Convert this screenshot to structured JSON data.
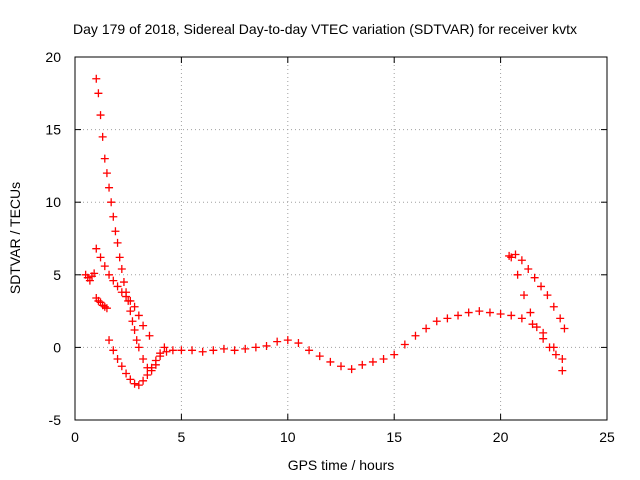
{
  "chart_data": {
    "type": "scatter",
    "title": "Day 179 of 2018, Sidereal Day-to-day VTEC variation (SDTVAR) for receiver kvtx",
    "xlabel": "GPS time / hours",
    "ylabel": "SDTVAR / TECUs",
    "xlim": [
      0,
      25
    ],
    "ylim": [
      -5,
      20
    ],
    "xticks": [
      0,
      5,
      10,
      15,
      20,
      25
    ],
    "yticks": [
      -5,
      0,
      5,
      10,
      15,
      20
    ],
    "grid": true,
    "marker": "+",
    "color": "#ff0000",
    "series": [
      {
        "name": "main-trace",
        "x": [
          1.0,
          1.1,
          1.2,
          1.3,
          1.4,
          1.5,
          1.6,
          1.7,
          1.8,
          1.9,
          2.0,
          2.1,
          2.2,
          2.3,
          2.4,
          2.5,
          2.6,
          2.7,
          2.8,
          2.9,
          3.0,
          3.2,
          3.4,
          3.6,
          3.8,
          4.0,
          4.3,
          4.6,
          5.0,
          5.5,
          6.0,
          6.5,
          7.0,
          7.5,
          8.0,
          8.5,
          9.0,
          9.5,
          10.0,
          10.5,
          11.0,
          11.5,
          12.0,
          12.5,
          13.0,
          13.5,
          14.0,
          14.5,
          15.0,
          15.5,
          16.0,
          16.5,
          17.0,
          17.5,
          18.0,
          18.5,
          19.0,
          19.5,
          20.0,
          20.5,
          21.0,
          21.5,
          22.0,
          22.5,
          22.9
        ],
        "y": [
          18.5,
          17.5,
          16.0,
          14.5,
          13.0,
          12.0,
          11.0,
          10.0,
          9.0,
          8.0,
          7.2,
          6.2,
          5.4,
          4.5,
          3.8,
          3.2,
          2.5,
          1.8,
          1.2,
          0.5,
          0.0,
          -0.8,
          -1.4,
          -1.6,
          -1.2,
          -0.6,
          -0.3,
          -0.2,
          -0.2,
          -0.2,
          -0.3,
          -0.2,
          -0.1,
          -0.2,
          -0.1,
          0.0,
          0.1,
          0.4,
          0.5,
          0.3,
          -0.2,
          -0.6,
          -1.0,
          -1.3,
          -1.5,
          -1.2,
          -1.0,
          -0.8,
          -0.5,
          0.2,
          0.8,
          1.3,
          1.8,
          2.0,
          2.2,
          2.4,
          2.5,
          2.4,
          2.3,
          2.2,
          2.0,
          1.6,
          1.0,
          0.0,
          -0.8
        ]
      },
      {
        "name": "secondary-trace",
        "x": [
          1.0,
          1.2,
          1.4,
          1.6,
          1.8,
          2.0,
          2.2,
          2.4,
          2.6,
          2.8,
          3.0,
          3.2,
          3.5
        ],
        "y": [
          6.8,
          6.2,
          5.6,
          5.0,
          4.6,
          4.2,
          3.8,
          3.5,
          3.2,
          2.8,
          2.2,
          1.5,
          0.8
        ]
      },
      {
        "name": "early-cluster",
        "x": [
          0.5,
          0.6,
          0.7,
          0.8,
          0.9,
          1.0,
          1.1,
          1.2,
          1.3,
          1.4,
          1.5
        ],
        "y": [
          5.0,
          4.8,
          4.6,
          4.9,
          5.1,
          3.4,
          3.2,
          3.1,
          2.9,
          2.8,
          2.7
        ]
      },
      {
        "name": "lower-trace",
        "x": [
          1.6,
          1.8,
          2.0,
          2.2,
          2.4,
          2.6,
          2.8,
          3.0,
          3.2,
          3.4,
          3.6,
          3.8,
          4.0,
          4.2
        ],
        "y": [
          0.5,
          -0.2,
          -0.8,
          -1.3,
          -1.8,
          -2.2,
          -2.5,
          -2.6,
          -2.3,
          -1.9,
          -1.4,
          -0.9,
          -0.4,
          0.0
        ]
      },
      {
        "name": "late-upper-trace",
        "x": [
          20.4,
          20.7,
          21.0,
          21.3,
          21.6,
          21.9,
          22.2,
          22.5,
          22.8,
          23.0
        ],
        "y": [
          6.3,
          6.4,
          6.0,
          5.4,
          4.8,
          4.2,
          3.6,
          2.8,
          2.0,
          1.3
        ]
      },
      {
        "name": "late-descending-trace",
        "x": [
          20.5,
          20.8,
          21.1,
          21.4,
          21.7,
          22.0,
          22.3,
          22.6,
          22.9
        ],
        "y": [
          6.2,
          5.0,
          3.6,
          2.4,
          1.4,
          0.6,
          0.0,
          -0.5,
          -1.6
        ]
      }
    ]
  }
}
